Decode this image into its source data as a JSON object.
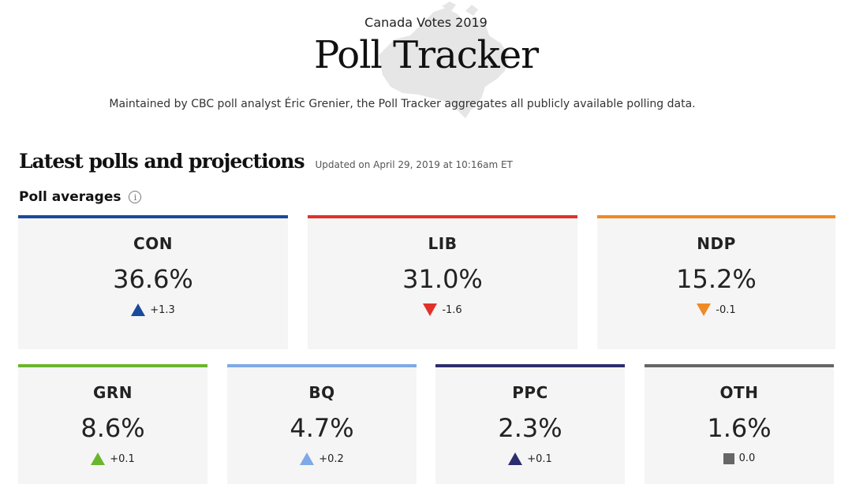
{
  "header": {
    "kicker": "Canada Votes 2019",
    "title": "Poll Tracker",
    "description": "Maintained by CBC poll analyst Éric Grenier, the Poll Tracker aggregates all publicly available polling data."
  },
  "section": {
    "title": "Latest polls and projections",
    "updated": "Updated on April 29, 2019 at 10:16am ET",
    "subhead": "Poll averages",
    "info_glyph": "i"
  },
  "parties": [
    {
      "party": "CON",
      "pct": "36.6%",
      "change": "+1.3",
      "direction": "up",
      "color": "#1a4a9c"
    },
    {
      "party": "LIB",
      "pct": "31.0%",
      "change": "-1.6",
      "direction": "down",
      "color": "#e0322a"
    },
    {
      "party": "NDP",
      "pct": "15.2%",
      "change": "-0.1",
      "direction": "down",
      "color": "#f08a24"
    },
    {
      "party": "GRN",
      "pct": "8.6%",
      "change": "+0.1",
      "direction": "up",
      "color": "#6ab52d"
    },
    {
      "party": "BQ",
      "pct": "4.7%",
      "change": "+0.2",
      "direction": "up",
      "color": "#7ea9e6"
    },
    {
      "party": "PPC",
      "pct": "2.3%",
      "change": "+0.1",
      "direction": "up",
      "color": "#2b2e6e"
    },
    {
      "party": "OTH",
      "pct": "1.6%",
      "change": "0.0",
      "direction": "none",
      "color": "#666666"
    }
  ]
}
